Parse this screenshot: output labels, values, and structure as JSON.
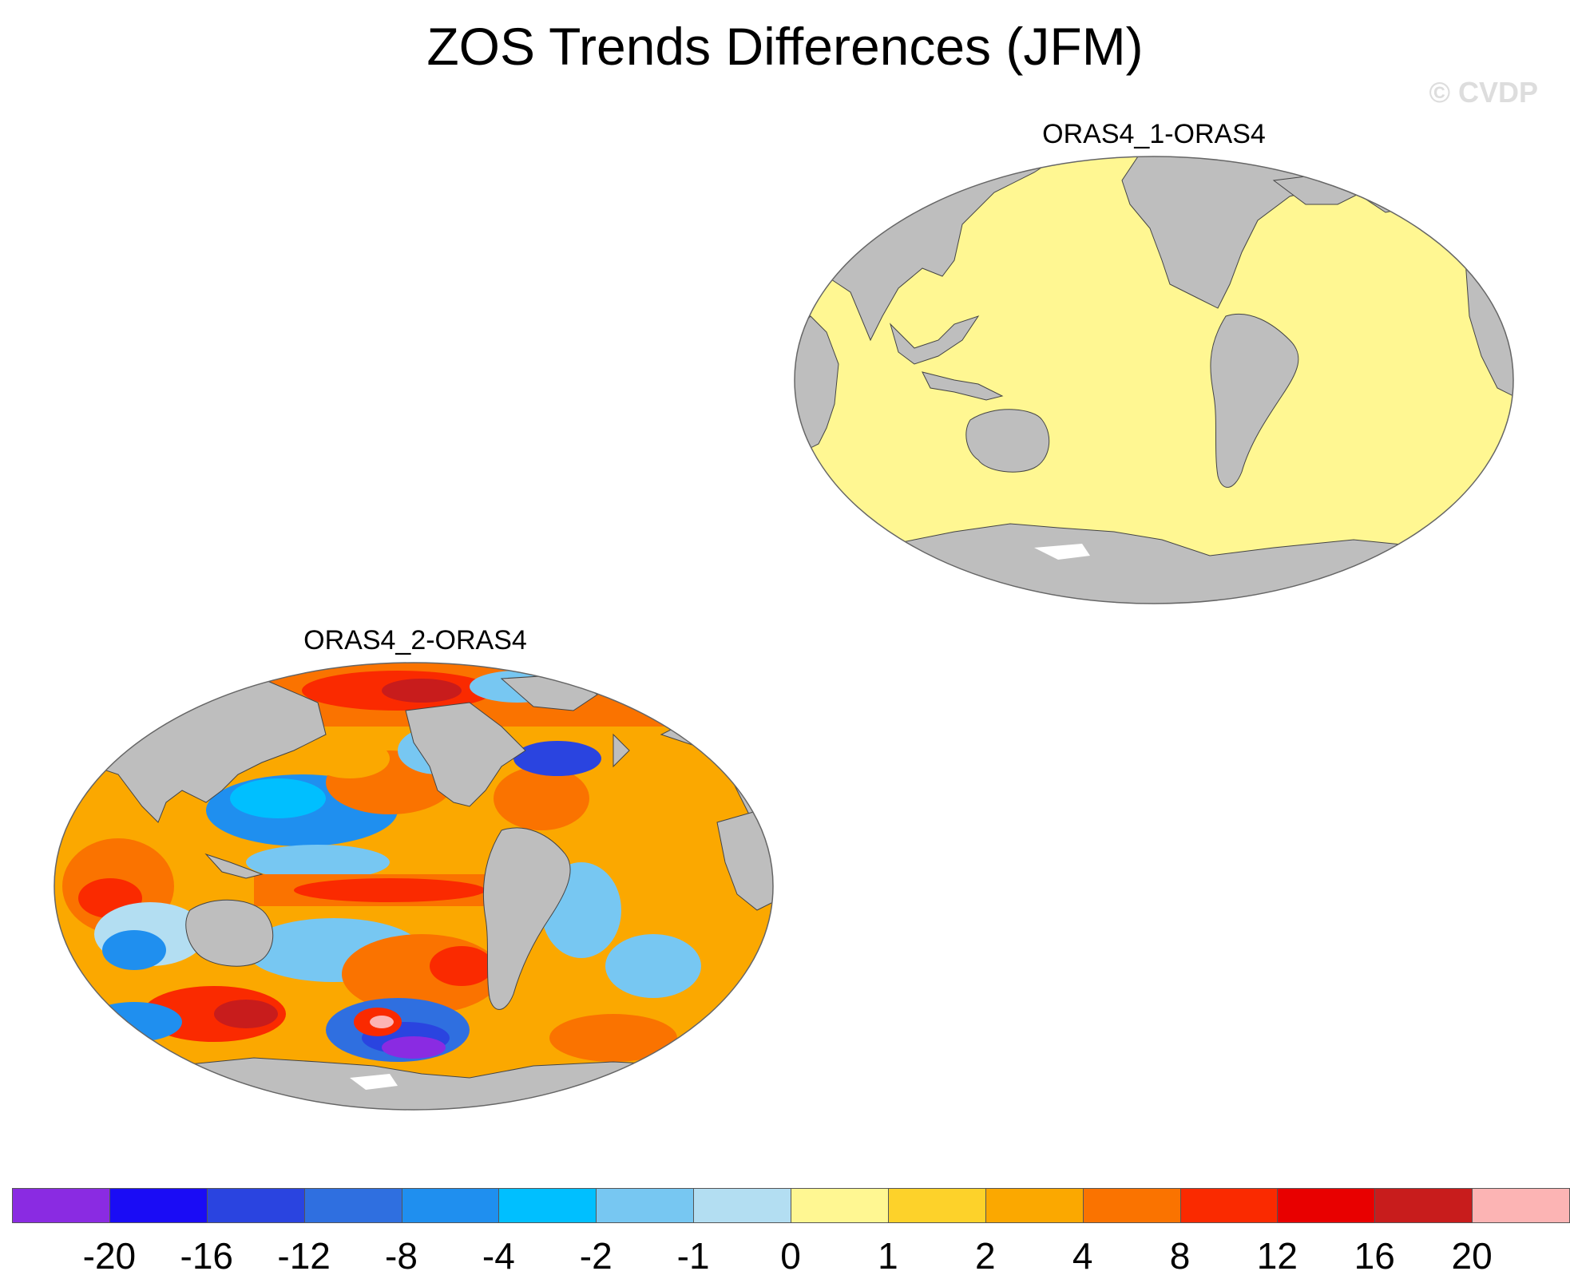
{
  "figure": {
    "title": "ZOS Trends Differences (JFM)",
    "watermark": "© CVDP"
  },
  "panels": [
    {
      "title": "ORAS4_1-ORAS4",
      "field": "uniform",
      "field_value_range": "0 to 1",
      "ocean_color": "#fff792"
    },
    {
      "title": "ORAS4_2-ORAS4",
      "field": "mixed",
      "field_value_range": "-20 to 20"
    }
  ],
  "colorbar": {
    "labels": [
      "-20",
      "-16",
      "-12",
      "-8",
      "-4",
      "-2",
      "-1",
      "0",
      "1",
      "2",
      "4",
      "8",
      "12",
      "16",
      "20"
    ],
    "colors": [
      "#8a2be2",
      "#1a0cf5",
      "#2a44e0",
      "#2f6fe0",
      "#1f8fef",
      "#00bfff",
      "#77c7f2",
      "#b3def2",
      "#fff792",
      "#fdd22a",
      "#fba800",
      "#fa7300",
      "#fa2a00",
      "#e80000",
      "#c81c1c",
      "#fcb4b4"
    ]
  },
  "map_colors": {
    "land": "#bebebe",
    "coast": "#444444"
  }
}
